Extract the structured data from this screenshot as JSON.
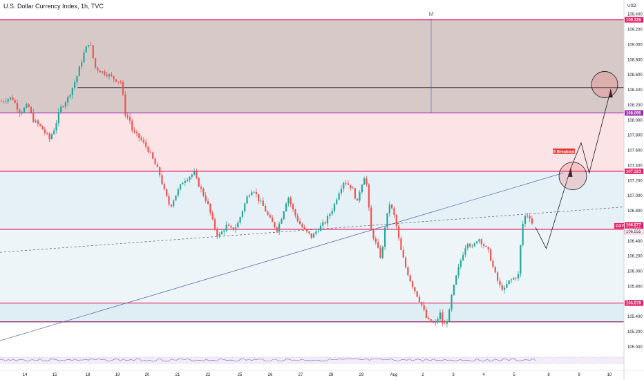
{
  "chart_data": {
    "type": "candlestick",
    "title": "U.S. Dollar Currency Index, 1h, TVC",
    "currency_label": "USD",
    "symbol_tag": "DXY",
    "y_range": [
      104.88,
      109.48
    ],
    "y_ticks": [
      "109.400",
      "109.200",
      "109.000",
      "108.800",
      "108.600",
      "108.400",
      "108.200",
      "108.000",
      "107.800",
      "107.600",
      "107.400",
      "107.200",
      "107.000",
      "106.800",
      "106.600",
      "106.400",
      "106.200",
      "106.000",
      "105.800",
      "105.600",
      "105.400",
      "105.200",
      "105.000"
    ],
    "x_ticks": [
      "14",
      "15",
      "18",
      "19",
      "20",
      "21",
      "22",
      "25",
      "26",
      "27",
      "28",
      "29",
      "Aug",
      "2",
      "3",
      "4",
      "5",
      "8",
      "9",
      "10"
    ],
    "levels": [
      {
        "label": "109.328",
        "value": 109.328,
        "color": "#e91e63"
      },
      {
        "label": "108.095",
        "value": 108.095,
        "color": "#9c27b0"
      },
      {
        "label": "107.323",
        "value": 107.323,
        "color": "#e91e63"
      },
      {
        "label": "106.555",
        "value": 106.555,
        "color": "#e91e63"
      },
      {
        "label": "105.578",
        "value": 105.578,
        "color": "#e91e63"
      }
    ],
    "price_tags": [
      {
        "label": "106.577",
        "value": 106.577,
        "color": "#e91e63"
      },
      {
        "label": "106.555",
        "value": 106.555,
        "color": "#ffffff"
      }
    ],
    "annotations": {
      "breakout_label": "If Breakout",
      "marker": "M"
    },
    "path": [
      [
        0,
        108.25
      ],
      [
        4,
        108.3
      ],
      [
        7,
        108.1
      ],
      [
        10,
        108.2
      ],
      [
        12,
        108.0
      ],
      [
        15,
        107.9
      ],
      [
        18,
        107.75
      ],
      [
        20,
        107.9
      ],
      [
        22,
        108.15
      ],
      [
        25,
        108.3
      ],
      [
        28,
        108.55
      ],
      [
        31,
        108.9
      ],
      [
        33,
        109.05
      ],
      [
        35,
        108.7
      ],
      [
        37,
        108.65
      ],
      [
        40,
        108.6
      ],
      [
        42,
        108.55
      ],
      [
        45,
        108.5
      ],
      [
        46,
        108.1
      ],
      [
        48,
        108.0
      ],
      [
        49,
        107.85
      ],
      [
        52,
        107.75
      ],
      [
        55,
        107.6
      ],
      [
        57,
        107.45
      ],
      [
        59,
        107.3
      ],
      [
        61,
        107.05
      ],
      [
        63,
        106.85
      ],
      [
        65,
        107.0
      ],
      [
        68,
        107.2
      ],
      [
        70,
        107.25
      ],
      [
        72,
        107.3
      ],
      [
        73,
        107.2
      ],
      [
        75,
        107.05
      ],
      [
        77,
        106.9
      ],
      [
        79,
        106.65
      ],
      [
        81,
        106.45
      ],
      [
        84,
        106.6
      ],
      [
        86,
        106.55
      ],
      [
        88,
        106.6
      ],
      [
        90,
        106.8
      ],
      [
        92,
        107.0
      ],
      [
        94,
        107.1
      ],
      [
        96,
        106.95
      ],
      [
        98,
        106.85
      ],
      [
        100,
        106.7
      ],
      [
        103,
        106.55
      ],
      [
        105,
        106.75
      ],
      [
        107,
        107.0
      ],
      [
        109,
        106.8
      ],
      [
        111,
        106.65
      ],
      [
        113,
        106.55
      ],
      [
        116,
        106.45
      ],
      [
        118,
        106.55
      ],
      [
        121,
        106.65
      ],
      [
        124,
        106.85
      ],
      [
        126,
        107.05
      ],
      [
        128,
        107.2
      ],
      [
        131,
        107.1
      ],
      [
        133,
        106.9
      ],
      [
        134,
        107.1
      ],
      [
        136,
        107.3
      ],
      [
        137,
        106.9
      ],
      [
        138,
        106.55
      ],
      [
        140,
        106.35
      ],
      [
        142,
        106.15
      ],
      [
        143,
        106.55
      ],
      [
        145,
        106.9
      ],
      [
        147,
        106.7
      ],
      [
        149,
        106.3
      ],
      [
        151,
        106.05
      ],
      [
        153,
        105.85
      ],
      [
        155,
        105.7
      ],
      [
        157,
        105.55
      ],
      [
        159,
        105.35
      ],
      [
        162,
        105.3
      ],
      [
        164,
        105.45
      ],
      [
        165,
        105.25
      ],
      [
        167,
        105.4
      ],
      [
        168,
        105.65
      ],
      [
        170,
        105.95
      ],
      [
        172,
        106.2
      ],
      [
        174,
        106.4
      ],
      [
        176,
        106.3
      ],
      [
        178,
        106.45
      ],
      [
        180,
        106.35
      ],
      [
        182,
        106.25
      ],
      [
        184,
        106.0
      ],
      [
        186,
        105.8
      ],
      [
        188,
        105.75
      ],
      [
        189,
        105.85
      ],
      [
        191,
        105.9
      ],
      [
        193,
        105.95
      ],
      [
        194,
        106.4
      ],
      [
        195,
        106.72
      ],
      [
        197,
        106.75
      ],
      [
        198,
        106.65
      ],
      [
        199,
        106.55
      ]
    ],
    "projection": [
      [
        199,
        106.58
      ],
      [
        203,
        106.3
      ],
      [
        212,
        107.35
      ],
      [
        216,
        107.7
      ],
      [
        219,
        107.3
      ],
      [
        227,
        108.4
      ]
    ],
    "rsi_band": [
      30,
      70
    ]
  }
}
